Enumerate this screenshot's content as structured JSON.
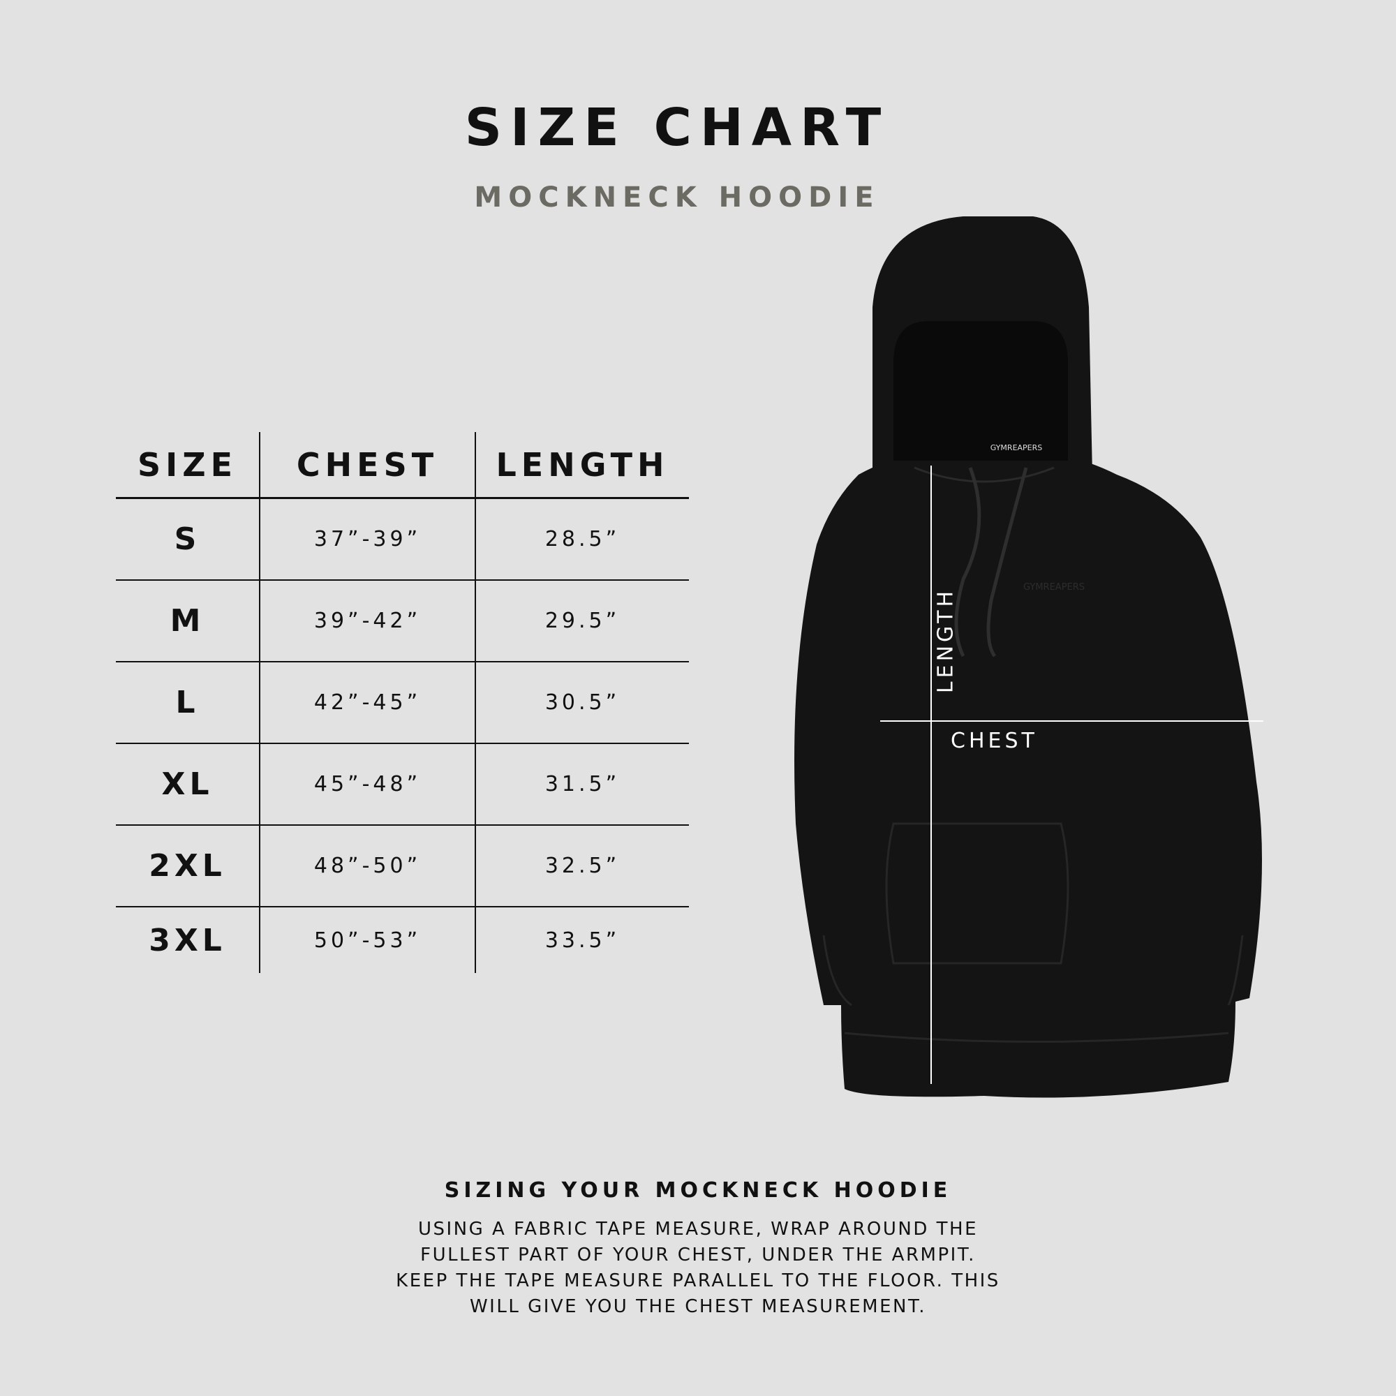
{
  "header": {
    "title": "SIZE CHART",
    "subtitle": "MOCKNECK HOODIE"
  },
  "table": {
    "columns": [
      "SIZE",
      "CHEST",
      "LENGTH"
    ],
    "rows": [
      {
        "size": "S",
        "chest": "37”-39”",
        "length": "28.5”"
      },
      {
        "size": "M",
        "chest": "39”-42”",
        "length": "29.5”"
      },
      {
        "size": "L",
        "chest": "42”-45”",
        "length": "30.5”"
      },
      {
        "size": "XL",
        "chest": "45”-48”",
        "length": "31.5”"
      },
      {
        "size": "2XL",
        "chest": "48”-50”",
        "length": "32.5”"
      },
      {
        "size": "3XL",
        "chest": "50”-53”",
        "length": "33.5”"
      }
    ]
  },
  "diagram": {
    "length_label": "LENGTH",
    "chest_label": "CHEST",
    "brand_print": "GYMREAPERS"
  },
  "instructions": {
    "heading": "SIZING YOUR MOCKNECK HOODIE",
    "lines": [
      "USING A FABRIC TAPE MEASURE, WRAP AROUND THE",
      "FULLEST PART OF YOUR CHEST, UNDER THE ARMPIT.",
      "KEEP THE TAPE MEASURE PARALLEL TO THE FLOOR. THIS",
      "WILL GIVE YOU THE CHEST MEASUREMENT."
    ]
  },
  "colors": {
    "background": "#e2e2e2",
    "subtitle": "#6b6b63",
    "hoodie": "#141414"
  }
}
